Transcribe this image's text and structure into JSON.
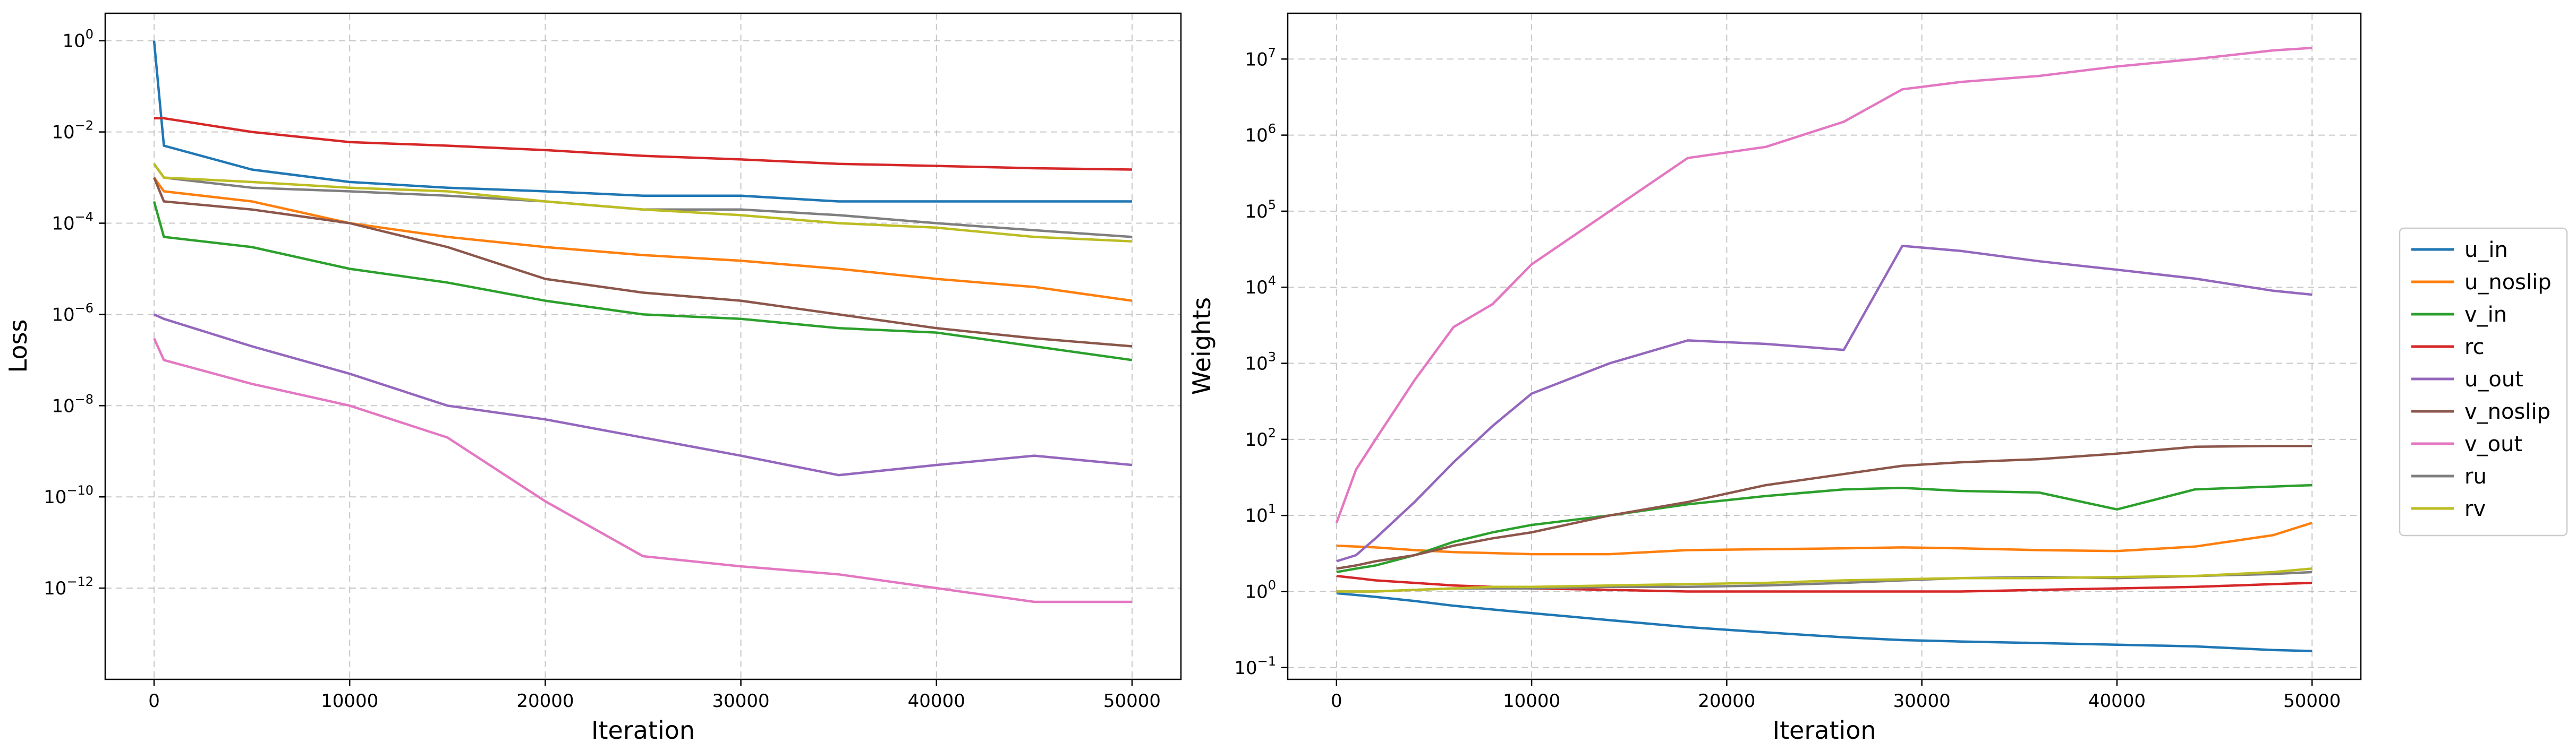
{
  "chart_data": [
    {
      "type": "line",
      "title": "",
      "xlabel": "Iteration",
      "ylabel": "Loss",
      "yscale": "log",
      "xlim": [
        -2500,
        52500
      ],
      "ylim": [
        1e-14,
        4
      ],
      "xticks": [
        "0",
        "10000",
        "20000",
        "30000",
        "40000",
        "50000"
      ],
      "yticks": [
        {
          "exp": "0"
        },
        {
          "exp": "−2"
        },
        {
          "exp": "−4"
        },
        {
          "exp": "−6"
        },
        {
          "exp": "−8"
        },
        {
          "exp": "−10"
        },
        {
          "exp": "−12"
        }
      ],
      "ytick_base": "10",
      "grid": true,
      "x": [
        0,
        500,
        5000,
        10000,
        15000,
        20000,
        25000,
        30000,
        35000,
        40000,
        45000,
        50000
      ],
      "series": [
        {
          "name": "u_in",
          "color": "#1f77b4",
          "values": [
            1.0,
            0.005,
            0.0015,
            0.0008,
            0.0006,
            0.0005,
            0.0004,
            0.0004,
            0.0003,
            0.0003,
            0.0003,
            0.0003
          ]
        },
        {
          "name": "u_noslip",
          "color": "#ff7f0e",
          "values": [
            0.001,
            0.0005,
            0.0003,
            0.0001,
            5e-05,
            3e-05,
            2e-05,
            1.5e-05,
            1e-05,
            6e-06,
            4e-06,
            2e-06
          ]
        },
        {
          "name": "v_in",
          "color": "#2ca02c",
          "values": [
            0.0003,
            5e-05,
            3e-05,
            1e-05,
            5e-06,
            2e-06,
            1e-06,
            8e-07,
            5e-07,
            4e-07,
            2e-07,
            1e-07
          ]
        },
        {
          "name": "rc",
          "color": "#d62728",
          "values": [
            0.02,
            0.02,
            0.01,
            0.006,
            0.005,
            0.004,
            0.003,
            0.0025,
            0.002,
            0.0018,
            0.0016,
            0.0015
          ]
        },
        {
          "name": "u_out",
          "color": "#9467bd",
          "values": [
            1e-06,
            8e-07,
            2e-07,
            5e-08,
            1e-08,
            5e-09,
            2e-09,
            8e-10,
            3e-10,
            5e-10,
            8e-10,
            5e-10
          ]
        },
        {
          "name": "v_noslip",
          "color": "#8c564b",
          "values": [
            0.001,
            0.0003,
            0.0002,
            0.0001,
            3e-05,
            6e-06,
            3e-06,
            2e-06,
            1e-06,
            5e-07,
            3e-07,
            2e-07
          ]
        },
        {
          "name": "v_out",
          "color": "#e377c2",
          "values": [
            3e-07,
            1e-07,
            3e-08,
            1e-08,
            2e-09,
            8e-11,
            5e-12,
            3e-12,
            2e-12,
            1e-12,
            5e-13,
            5e-13
          ]
        },
        {
          "name": "ru",
          "color": "#7f7f7f",
          "values": [
            0.002,
            0.001,
            0.0006,
            0.0005,
            0.0004,
            0.0003,
            0.0002,
            0.0002,
            0.00015,
            0.0001,
            7e-05,
            5e-05
          ]
        },
        {
          "name": "rv",
          "color": "#bcbd22",
          "values": [
            0.002,
            0.001,
            0.0008,
            0.0006,
            0.0005,
            0.0003,
            0.0002,
            0.00015,
            0.0001,
            8e-05,
            5e-05,
            4e-05
          ]
        }
      ]
    },
    {
      "type": "line",
      "title": "",
      "xlabel": "Iteration",
      "ylabel": "Weights",
      "yscale": "log",
      "xlim": [
        -2500,
        52500
      ],
      "ylim": [
        0.07,
        40000000.0
      ],
      "xticks": [
        "0",
        "10000",
        "20000",
        "30000",
        "40000",
        "50000"
      ],
      "yticks": [
        {
          "exp": "−1"
        },
        {
          "exp": "0"
        },
        {
          "exp": "1"
        },
        {
          "exp": "2"
        },
        {
          "exp": "3"
        },
        {
          "exp": "4"
        },
        {
          "exp": "5"
        },
        {
          "exp": "6"
        },
        {
          "exp": "7"
        }
      ],
      "ytick_base": "10",
      "grid": true,
      "legend_position": "right-outside",
      "x": [
        0,
        1000,
        2000,
        4000,
        6000,
        8000,
        10000,
        14000,
        18000,
        22000,
        26000,
        29000,
        32000,
        36000,
        40000,
        44000,
        48000,
        50000
      ],
      "series": [
        {
          "name": "u_in",
          "color": "#1f77b4",
          "values": [
            0.95,
            0.9,
            0.85,
            0.75,
            0.65,
            0.58,
            0.52,
            0.42,
            0.34,
            0.29,
            0.25,
            0.23,
            0.22,
            0.21,
            0.2,
            0.19,
            0.17,
            0.165
          ]
        },
        {
          "name": "u_noslip",
          "color": "#ff7f0e",
          "values": [
            4.0,
            3.9,
            3.8,
            3.5,
            3.3,
            3.2,
            3.1,
            3.1,
            3.5,
            3.6,
            3.7,
            3.8,
            3.7,
            3.5,
            3.4,
            3.9,
            5.5,
            8.0
          ]
        },
        {
          "name": "v_in",
          "color": "#2ca02c",
          "values": [
            1.8,
            2.0,
            2.2,
            3.0,
            4.5,
            6.0,
            7.5,
            10.0,
            14.0,
            18.0,
            22.0,
            23.0,
            21.0,
            20.0,
            12.0,
            22.0,
            24.0,
            25.0
          ]
        },
        {
          "name": "rc",
          "color": "#d62728",
          "values": [
            1.6,
            1.5,
            1.4,
            1.3,
            1.2,
            1.15,
            1.1,
            1.05,
            1.0,
            1.0,
            1.0,
            1.0,
            1.0,
            1.05,
            1.1,
            1.15,
            1.25,
            1.3
          ]
        },
        {
          "name": "u_out",
          "color": "#9467bd",
          "values": [
            2.5,
            3.0,
            5.0,
            15.0,
            50.0,
            150.0,
            400.0,
            1000.0,
            2000.0,
            1800.0,
            1500.0,
            35000.0,
            30000.0,
            22000.0,
            17000.0,
            13000.0,
            9000.0,
            8000.0
          ]
        },
        {
          "name": "v_noslip",
          "color": "#8c564b",
          "values": [
            2.0,
            2.2,
            2.5,
            3.0,
            4.0,
            5.0,
            6.0,
            10.0,
            15.0,
            25.0,
            35.0,
            45.0,
            50.0,
            55.0,
            65.0,
            80.0,
            82.0,
            82.0
          ]
        },
        {
          "name": "v_out",
          "color": "#e377c2",
          "values": [
            8.0,
            40.0,
            100.0,
            600.0,
            3000.0,
            6000.0,
            20000.0,
            100000.0,
            500000.0,
            700000.0,
            1500000.0,
            4000000.0,
            5000000.0,
            6000000.0,
            8000000.0,
            10000000.0,
            13000000.0,
            14000000.0
          ]
        },
        {
          "name": "ru",
          "color": "#7f7f7f",
          "values": [
            1.0,
            1.0,
            1.0,
            1.05,
            1.1,
            1.1,
            1.1,
            1.15,
            1.15,
            1.2,
            1.3,
            1.4,
            1.5,
            1.55,
            1.5,
            1.6,
            1.7,
            1.8
          ]
        },
        {
          "name": "rv",
          "color": "#bcbd22",
          "values": [
            1.0,
            1.0,
            1.0,
            1.05,
            1.1,
            1.15,
            1.15,
            1.2,
            1.25,
            1.3,
            1.4,
            1.45,
            1.5,
            1.5,
            1.55,
            1.6,
            1.8,
            2.0
          ]
        }
      ]
    }
  ]
}
